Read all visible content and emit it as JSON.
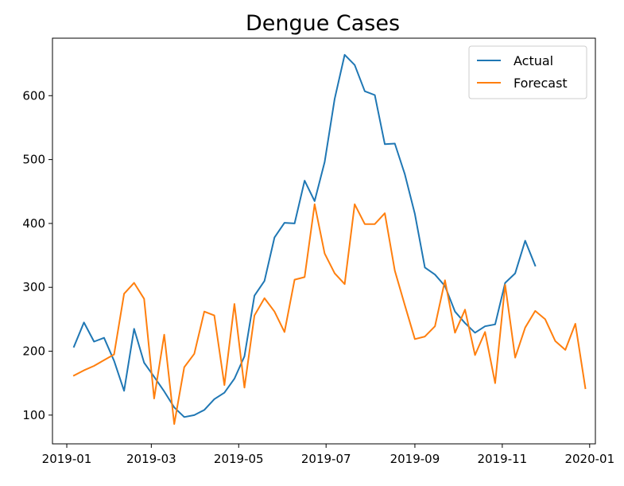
{
  "chart_data": {
    "type": "line",
    "title": "Dengue Cases",
    "xlabel": "",
    "ylabel": "",
    "x_range": [
      "2018-12-22",
      "2020-01-05"
    ],
    "y_range": [
      55,
      690
    ],
    "x_ticks": [
      {
        "date": "2019-01-01",
        "label": "2019-01"
      },
      {
        "date": "2019-03-01",
        "label": "2019-03"
      },
      {
        "date": "2019-05-01",
        "label": "2019-05"
      },
      {
        "date": "2019-07-01",
        "label": "2019-07"
      },
      {
        "date": "2019-09-01",
        "label": "2019-09"
      },
      {
        "date": "2019-11-01",
        "label": "2019-11"
      },
      {
        "date": "2020-01-01",
        "label": "2020-01"
      }
    ],
    "y_ticks": [
      100,
      200,
      300,
      400,
      500,
      600
    ],
    "grid": false,
    "legend": "top-right",
    "series": [
      {
        "name": "Actual",
        "color": "#1f77b4",
        "points": [
          [
            "2019-01-06",
            207
          ],
          [
            "2019-01-13",
            245
          ],
          [
            "2019-01-20",
            215
          ],
          [
            "2019-01-27",
            221
          ],
          [
            "2019-02-03",
            185
          ],
          [
            "2019-02-10",
            138
          ],
          [
            "2019-02-17",
            235
          ],
          [
            "2019-02-24",
            182
          ],
          [
            "2019-03-03",
            160
          ],
          [
            "2019-03-10",
            137
          ],
          [
            "2019-03-17",
            112
          ],
          [
            "2019-03-24",
            97
          ],
          [
            "2019-03-31",
            100
          ],
          [
            "2019-04-07",
            108
          ],
          [
            "2019-04-14",
            125
          ],
          [
            "2019-04-21",
            135
          ],
          [
            "2019-04-28",
            157
          ],
          [
            "2019-05-05",
            192
          ],
          [
            "2019-05-12",
            287
          ],
          [
            "2019-05-19",
            310
          ],
          [
            "2019-05-26",
            378
          ],
          [
            "2019-06-02",
            401
          ],
          [
            "2019-06-09",
            400
          ],
          [
            "2019-06-16",
            467
          ],
          [
            "2019-06-23",
            435
          ],
          [
            "2019-06-30",
            496
          ],
          [
            "2019-07-07",
            595
          ],
          [
            "2019-07-14",
            664
          ],
          [
            "2019-07-21",
            648
          ],
          [
            "2019-07-28",
            607
          ],
          [
            "2019-08-04",
            601
          ],
          [
            "2019-08-11",
            524
          ],
          [
            "2019-08-18",
            525
          ],
          [
            "2019-08-25",
            477
          ],
          [
            "2019-09-01",
            415
          ],
          [
            "2019-09-08",
            331
          ],
          [
            "2019-09-15",
            320
          ],
          [
            "2019-09-22",
            302
          ],
          [
            "2019-09-29",
            262
          ],
          [
            "2019-10-06",
            244
          ],
          [
            "2019-10-13",
            229
          ],
          [
            "2019-10-20",
            239
          ],
          [
            "2019-10-27",
            242
          ],
          [
            "2019-11-03",
            307
          ],
          [
            "2019-11-10",
            322
          ],
          [
            "2019-11-17",
            373
          ],
          [
            "2019-11-24",
            334
          ]
        ]
      },
      {
        "name": "Forecast",
        "color": "#ff7f0e",
        "points": [
          [
            "2019-01-06",
            162
          ],
          [
            "2019-01-13",
            170
          ],
          [
            "2019-01-20",
            177
          ],
          [
            "2019-01-27",
            186
          ],
          [
            "2019-02-03",
            195
          ],
          [
            "2019-02-10",
            290
          ],
          [
            "2019-02-17",
            307
          ],
          [
            "2019-02-24",
            282
          ],
          [
            "2019-03-03",
            126
          ],
          [
            "2019-03-10",
            226
          ],
          [
            "2019-03-17",
            86
          ],
          [
            "2019-03-24",
            175
          ],
          [
            "2019-03-31",
            196
          ],
          [
            "2019-04-07",
            262
          ],
          [
            "2019-04-14",
            256
          ],
          [
            "2019-04-21",
            147
          ],
          [
            "2019-04-28",
            274
          ],
          [
            "2019-05-05",
            143
          ],
          [
            "2019-05-12",
            256
          ],
          [
            "2019-05-19",
            283
          ],
          [
            "2019-05-26",
            262
          ],
          [
            "2019-06-02",
            230
          ],
          [
            "2019-06-09",
            312
          ],
          [
            "2019-06-16",
            316
          ],
          [
            "2019-06-23",
            430
          ],
          [
            "2019-06-30",
            353
          ],
          [
            "2019-07-07",
            322
          ],
          [
            "2019-07-14",
            305
          ],
          [
            "2019-07-21",
            430
          ],
          [
            "2019-07-28",
            399
          ],
          [
            "2019-08-04",
            399
          ],
          [
            "2019-08-11",
            416
          ],
          [
            "2019-08-18",
            326
          ],
          [
            "2019-08-25",
            272
          ],
          [
            "2019-09-01",
            219
          ],
          [
            "2019-09-08",
            223
          ],
          [
            "2019-09-15",
            239
          ],
          [
            "2019-09-22",
            311
          ],
          [
            "2019-09-29",
            229
          ],
          [
            "2019-10-06",
            265
          ],
          [
            "2019-10-13",
            194
          ],
          [
            "2019-10-20",
            230
          ],
          [
            "2019-10-27",
            150
          ],
          [
            "2019-11-03",
            304
          ],
          [
            "2019-11-10",
            190
          ],
          [
            "2019-11-17",
            237
          ],
          [
            "2019-11-24",
            263
          ],
          [
            "2019-12-01",
            250
          ],
          [
            "2019-12-08",
            216
          ],
          [
            "2019-12-15",
            202
          ],
          [
            "2019-12-22",
            243
          ],
          [
            "2019-12-29",
            142
          ]
        ]
      }
    ]
  }
}
